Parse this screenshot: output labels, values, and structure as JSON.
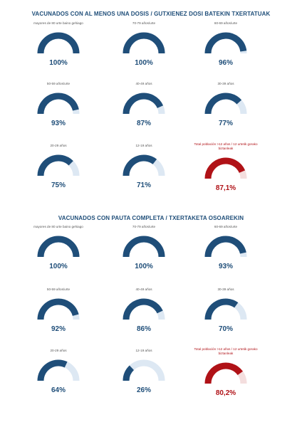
{
  "colors": {
    "blue": "#1f4e79",
    "blue_track": "#dde8f3",
    "red": "#b01217",
    "red_track": "#f4dede"
  },
  "chart_data": [
    {
      "type": "gauge",
      "title": "VACUNADOS CON AL MENOS UNA DOSIS  / GUTXIENEZ DOSI BATEKIN TXERTATUAK",
      "items": [
        {
          "label": "mayores de 80 urte baino gehiago",
          "value": 100,
          "display": "100%",
          "highlight": false
        },
        {
          "label": "70-79 años/urte",
          "value": 100,
          "display": "100%",
          "highlight": false
        },
        {
          "label": "60-69 años/urte",
          "value": 96,
          "display": "96%",
          "highlight": false
        },
        {
          "label": "50-59 años/urte",
          "value": 93,
          "display": "93%",
          "highlight": false
        },
        {
          "label": "40-49 años",
          "value": 87,
          "display": "87%",
          "highlight": false
        },
        {
          "label": "30-39 años",
          "value": 77,
          "display": "77%",
          "highlight": false
        },
        {
          "label": "20-29 años",
          "value": 75,
          "display": "75%",
          "highlight": false
        },
        {
          "label": "12-19 años",
          "value": 71,
          "display": "71%",
          "highlight": false
        },
        {
          "label": "Total población >12 años / 12 urtetik gorako biztanleak",
          "value": 87.1,
          "display": "87,1%",
          "highlight": true
        }
      ]
    },
    {
      "type": "gauge",
      "title": "VACUNADOS CON PAUTA COMPLETA  / TXERTAKETA OSOAREKIN",
      "items": [
        {
          "label": "mayores de 80 urte baino gehiago",
          "value": 100,
          "display": "100%",
          "highlight": false
        },
        {
          "label": "70-79 años/urte",
          "value": 100,
          "display": "100%",
          "highlight": false
        },
        {
          "label": "60-69 años/urte",
          "value": 93,
          "display": "93%",
          "highlight": false
        },
        {
          "label": "50-59 años/urte",
          "value": 92,
          "display": "92%",
          "highlight": false
        },
        {
          "label": "40-49 años",
          "value": 86,
          "display": "86%",
          "highlight": false
        },
        {
          "label": "30-39 años",
          "value": 70,
          "display": "70%",
          "highlight": false
        },
        {
          "label": "20-29 años",
          "value": 64,
          "display": "64%",
          "highlight": false
        },
        {
          "label": "12-19 años",
          "value": 26,
          "display": "26%",
          "highlight": false
        },
        {
          "label": "Total población >12 años / 12 urtetik gorako biztanleak",
          "value": 80.2,
          "display": "80,2%",
          "highlight": true
        }
      ]
    }
  ]
}
